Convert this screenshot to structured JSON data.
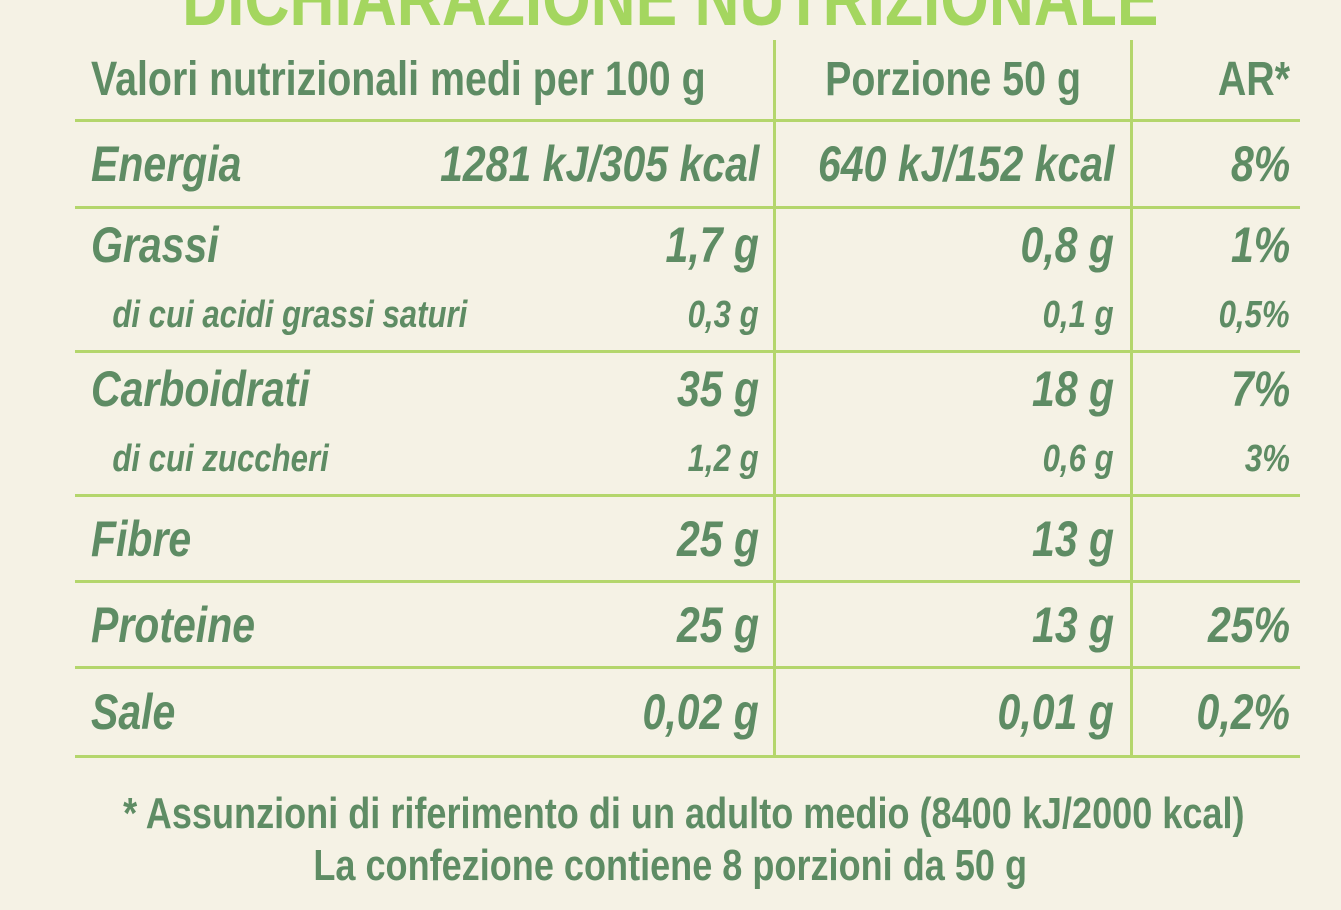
{
  "title": "DICHIARAZIONE NUTRIZIONALE",
  "colors": {
    "background": "#f5f2e5",
    "title_green": "#a4d65f",
    "grid_line_green": "#b4d66c",
    "text_green": "#5e8c64"
  },
  "table": {
    "header": {
      "col1": "Valori nutrizionali medi per 100 g",
      "col2": "Porzione 50 g",
      "col3": "AR*"
    },
    "rows": [
      {
        "label": "Energia",
        "per100": "1281 kJ/305 kcal",
        "portion": "640 kJ/152 kcal",
        "ar": "8%"
      },
      {
        "label": "Grassi",
        "per100": "1,7 g",
        "portion": "0,8 g",
        "ar": "1%"
      },
      {
        "label": "di cui acidi grassi saturi",
        "per100": "0,3 g",
        "portion": "0,1 g",
        "ar": "0,5%"
      },
      {
        "label": "Carboidrati",
        "per100": "35 g",
        "portion": "18 g",
        "ar": "7%"
      },
      {
        "label": "di cui zuccheri",
        "per100": "1,2 g",
        "portion": "0,6 g",
        "ar": "3%"
      },
      {
        "label": "Fibre",
        "per100": "25 g",
        "portion": "13 g",
        "ar": ""
      },
      {
        "label": "Proteine",
        "per100": "25 g",
        "portion": "13 g",
        "ar": "25%"
      },
      {
        "label": "Sale",
        "per100": "0,02 g",
        "portion": "0,01 g",
        "ar": "0,2%"
      }
    ]
  },
  "footnotes": {
    "line1": "* Assunzioni di riferimento di un adulto medio (8400 kJ/2000 kcal)",
    "line2": "La confezione contiene 8 porzioni da 50 g"
  }
}
